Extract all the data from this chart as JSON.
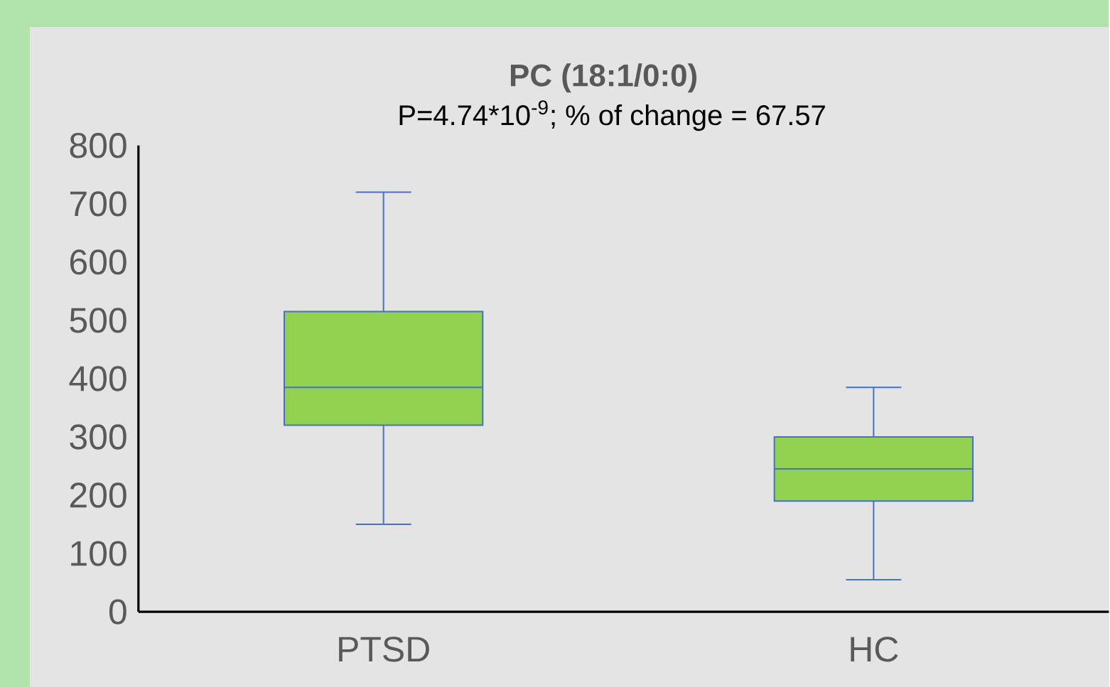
{
  "chart_data": {
    "type": "box",
    "title": "PC (18:1/0:0)",
    "subtitle": "P=4.74*10$^{-9}$; % of change = 67.57",
    "categories": [
      "PTSD",
      "HC"
    ],
    "boxes": [
      {
        "low": 150,
        "q1": 320,
        "median": 385,
        "q3": 515,
        "high": 720
      },
      {
        "low": 55,
        "q1": 190,
        "median": 245,
        "q3": 300,
        "high": 385
      }
    ],
    "color": "#92d050",
    "ylim": [
      0,
      800
    ],
    "yticks": [
      0,
      100,
      200,
      300,
      400,
      500,
      600,
      700,
      800
    ]
  }
}
